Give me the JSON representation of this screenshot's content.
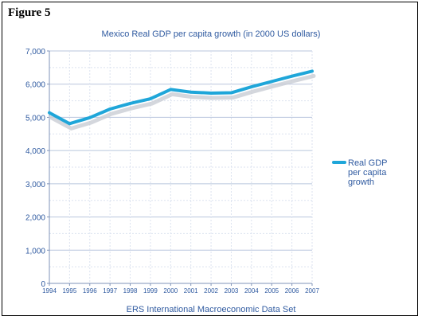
{
  "figure_label": "Figure 5",
  "chart_data": {
    "type": "line",
    "title": "Mexico Real GDP per capita growth (in 2000 US dollars)",
    "source": "ERS International Macroeconomic Data Set",
    "xlabel": "",
    "ylabel": "",
    "ylim": [
      0,
      7000
    ],
    "yticks": [
      0,
      1000,
      2000,
      3000,
      4000,
      5000,
      6000,
      7000
    ],
    "ytick_labels": [
      "0",
      "1,000",
      "2,000",
      "3,000",
      "4,000",
      "5,000",
      "6,000",
      "7,000"
    ],
    "x": [
      "1994",
      "1995",
      "1996",
      "1997",
      "1998",
      "1999",
      "2000",
      "2001",
      "2002",
      "2003",
      "2004",
      "2005",
      "2006",
      "2007"
    ],
    "grid": true,
    "legend_position": "right",
    "series": [
      {
        "name": "Real GDP per capita growth",
        "legend_lines": [
          "Real GDP",
          "per capita",
          "growth"
        ],
        "color": "#1fa6d9",
        "values": [
          5140,
          4810,
          4990,
          5250,
          5420,
          5560,
          5840,
          5760,
          5730,
          5740,
          5920,
          6080,
          6240,
          6390
        ]
      }
    ]
  }
}
